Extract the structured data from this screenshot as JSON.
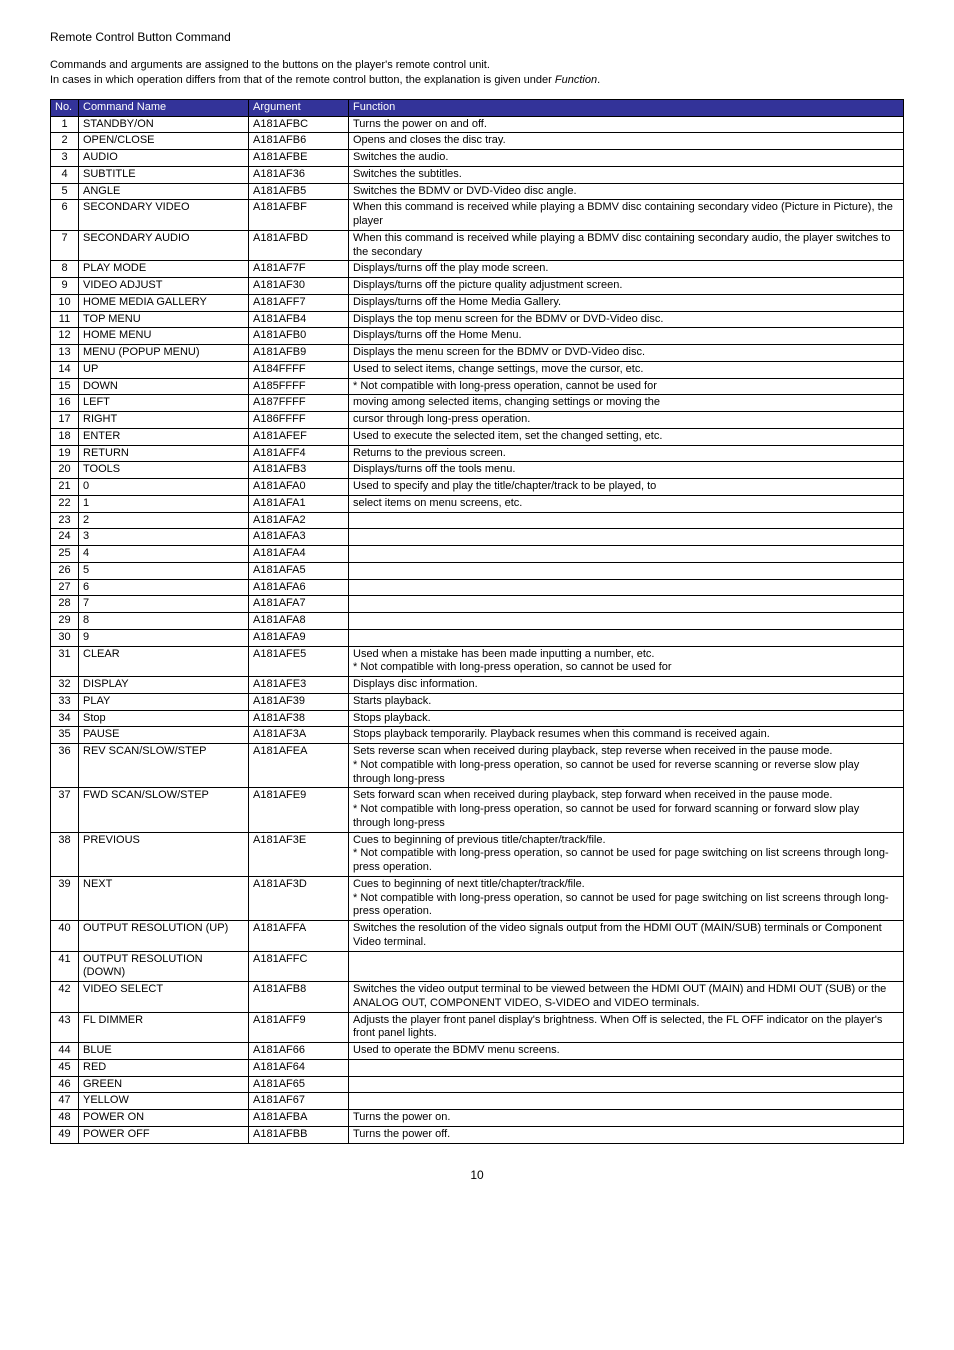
{
  "page_title": "Remote Control Button Command",
  "description_line1": "Commands and arguments are assigned to the buttons on the player's remote control unit.",
  "description_line2_a": "In cases in which operation differs from that of the remote control button, the explanation is given under ",
  "description_line2_b": "Function",
  "description_line2_c": ".",
  "header": {
    "no": "No.",
    "cmd": "Command Name",
    "arg": "Argument",
    "func": "Function"
  },
  "header_bg": "#333399",
  "header_fg": "#ffffff",
  "border_color": "#000000",
  "page_number": "10",
  "rows": [
    {
      "no": "1",
      "cmd": "STANDBY/ON",
      "arg": "A181AFBC",
      "func": "Turns the power on and off."
    },
    {
      "no": "2",
      "cmd": "OPEN/CLOSE",
      "arg": "A181AFB6",
      "func": "Opens and closes the disc tray."
    },
    {
      "no": "3",
      "cmd": "AUDIO",
      "arg": "A181AFBE",
      "func": "Switches the audio."
    },
    {
      "no": "4",
      "cmd": "SUBTITLE",
      "arg": "A181AF36",
      "func": "Switches the subtitles."
    },
    {
      "no": "5",
      "cmd": "ANGLE",
      "arg": "A181AFB5",
      "func": "Switches the BDMV or DVD-Video disc angle."
    },
    {
      "no": "6",
      "cmd": "SECONDARY VIDEO",
      "arg": "A181AFBF",
      "func": "When this command is received while playing a BDMV disc containing secondary video (Picture in Picture), the player"
    },
    {
      "no": "7",
      "cmd": "SECONDARY AUDIO",
      "arg": "A181AFBD",
      "func": "When this command is received while playing a BDMV disc containing secondary audio, the player switches to the secondary"
    },
    {
      "no": "8",
      "cmd": "PLAY MODE",
      "arg": "A181AF7F",
      "func": "Displays/turns off the play mode screen."
    },
    {
      "no": "9",
      "cmd": "VIDEO ADJUST",
      "arg": "A181AF30",
      "func": "Displays/turns off the picture quality adjustment screen."
    },
    {
      "no": "10",
      "cmd": "HOME MEDIA GALLERY",
      "arg": "A181AFF7",
      "func": "Displays/turns off the Home Media Gallery."
    },
    {
      "no": "11",
      "cmd": "TOP MENU",
      "arg": "A181AFB4",
      "func": "Displays the top menu screen for the BDMV or DVD-Video disc."
    },
    {
      "no": "12",
      "cmd": "HOME MENU",
      "arg": "A181AFB0",
      "func": "Displays/turns off the Home Menu."
    },
    {
      "no": "13",
      "cmd": "MENU (POPUP MENU)",
      "arg": "A181AFB9",
      "func": "Displays the menu screen for the BDMV or DVD-Video disc."
    },
    {
      "no": "14",
      "cmd": "UP",
      "arg": "A184FFFF",
      "func": "Used to select items, change settings, move the cursor, etc."
    },
    {
      "no": "15",
      "cmd": "DOWN",
      "arg": "A185FFFF",
      "func": "* Not compatible with long-press operation, cannot be used for"
    },
    {
      "no": "16",
      "cmd": "LEFT",
      "arg": "A187FFFF",
      "func": "moving among selected items, changing settings or moving the"
    },
    {
      "no": "17",
      "cmd": "RIGHT",
      "arg": "A186FFFF",
      "func": "cursor through long-press operation."
    },
    {
      "no": "18",
      "cmd": "ENTER",
      "arg": "A181AFEF",
      "func": "Used to execute the selected item, set the changed setting, etc."
    },
    {
      "no": "19",
      "cmd": "RETURN",
      "arg": "A181AFF4",
      "func": "Returns to the previous screen."
    },
    {
      "no": "20",
      "cmd": "TOOLS",
      "arg": "A181AFB3",
      "func": "Displays/turns off the tools menu."
    },
    {
      "no": "21",
      "cmd": "0",
      "arg": "A181AFA0",
      "func": "Used to specify and play the title/chapter/track to be played, to"
    },
    {
      "no": "22",
      "cmd": "1",
      "arg": "A181AFA1",
      "func": "select items on menu screens, etc."
    },
    {
      "no": "23",
      "cmd": "2",
      "arg": "A181AFA2",
      "func": ""
    },
    {
      "no": "24",
      "cmd": "3",
      "arg": "A181AFA3",
      "func": ""
    },
    {
      "no": "25",
      "cmd": "4",
      "arg": "A181AFA4",
      "func": ""
    },
    {
      "no": "26",
      "cmd": "5",
      "arg": "A181AFA5",
      "func": ""
    },
    {
      "no": "27",
      "cmd": "6",
      "arg": "A181AFA6",
      "func": ""
    },
    {
      "no": "28",
      "cmd": "7",
      "arg": "A181AFA7",
      "func": ""
    },
    {
      "no": "29",
      "cmd": "8",
      "arg": "A181AFA8",
      "func": ""
    },
    {
      "no": "30",
      "cmd": "9",
      "arg": "A181AFA9",
      "func": ""
    },
    {
      "no": "31",
      "cmd": "CLEAR",
      "arg": "A181AFE5",
      "func": "Used when a mistake has been made inputting a number, etc.\n* Not compatible with long-press operation, so cannot be used for"
    },
    {
      "no": "32",
      "cmd": "DISPLAY",
      "arg": "A181AFE3",
      "func": "Displays disc information."
    },
    {
      "no": "33",
      "cmd": "PLAY",
      "arg": "A181AF39",
      "func": "Starts playback."
    },
    {
      "no": "34",
      "cmd": "Stop",
      "arg": "A181AF38",
      "func": "Stops playback."
    },
    {
      "no": "35",
      "cmd": "PAUSE",
      "arg": "A181AF3A",
      "func": "Stops playback temporarily. Playback resumes when this command is received again."
    },
    {
      "no": "36",
      "cmd": "REV SCAN/SLOW/STEP",
      "arg": "A181AFEA",
      "func": "Sets reverse scan when received during playback, step reverse when received in the pause mode.\n* Not compatible with long-press operation, so cannot be used for reverse scanning or reverse slow play through long-press"
    },
    {
      "no": "37",
      "cmd": "FWD SCAN/SLOW/STEP",
      "arg": "A181AFE9",
      "func": "Sets forward scan when received during playback, step forward when received in the pause mode.\n* Not compatible with long-press operation, so cannot be used for forward scanning or forward slow play through long-press"
    },
    {
      "no": "38",
      "cmd": "PREVIOUS",
      "arg": "A181AF3E",
      "func": "Cues to beginning of previous title/chapter/track/file.\n* Not compatible with long-press operation, so cannot be used for page switching on list screens through long-press operation."
    },
    {
      "no": "39",
      "cmd": "NEXT",
      "arg": "A181AF3D",
      "func": "Cues to beginning of next title/chapter/track/file.\n* Not compatible with long-press operation, so cannot be used for page switching on list screens through long-press operation."
    },
    {
      "no": "40",
      "cmd": "OUTPUT RESOLUTION (UP)",
      "arg": "A181AFFA",
      "func": "Switches the resolution of the video signals output from the HDMI OUT (MAIN/SUB) terminals or Component Video terminal."
    },
    {
      "no": "41",
      "cmd": "OUTPUT RESOLUTION (DOWN)",
      "arg": "A181AFFC",
      "func": ""
    },
    {
      "no": "42",
      "cmd": "VIDEO SELECT",
      "arg": "A181AFB8",
      "func": "Switches the video output terminal to be viewed between the HDMI OUT (MAIN) and HDMI OUT (SUB) or the ANALOG OUT, COMPONENT VIDEO, S-VIDEO and VIDEO terminals."
    },
    {
      "no": "43",
      "cmd": "FL DIMMER",
      "arg": "A181AFF9",
      "func": "Adjusts the player front panel display's brightness. When Off is selected, the FL OFF indicator on the player's front panel lights."
    },
    {
      "no": "44",
      "cmd": "BLUE",
      "arg": "A181AF66",
      "func": "Used to operate the BDMV menu screens."
    },
    {
      "no": "45",
      "cmd": "RED",
      "arg": "A181AF64",
      "func": ""
    },
    {
      "no": "46",
      "cmd": "GREEN",
      "arg": "A181AF65",
      "func": ""
    },
    {
      "no": "47",
      "cmd": "YELLOW",
      "arg": "A181AF67",
      "func": ""
    },
    {
      "no": "48",
      "cmd": "POWER ON",
      "arg": "A181AFBA",
      "func": "Turns the power on."
    },
    {
      "no": "49",
      "cmd": "POWER OFF",
      "arg": "A181AFBB",
      "func": "Turns the power off."
    }
  ]
}
